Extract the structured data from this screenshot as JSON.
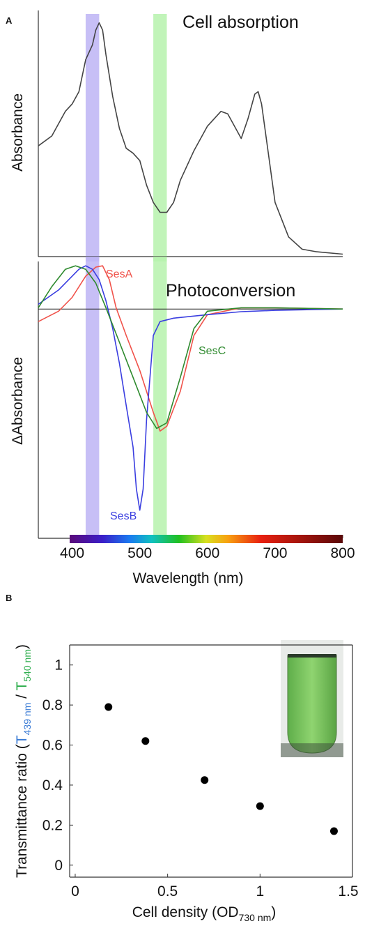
{
  "panel_labels": [
    "A",
    "B"
  ],
  "chart_data": [
    {
      "type": "line",
      "title": "Cell absorption",
      "ylabel": "Absorbance",
      "xlim": [
        350,
        800
      ],
      "ylim": [
        0,
        1
      ],
      "bands": [
        {
          "from": 420,
          "to": 440,
          "color": "#bdb4f5"
        },
        {
          "from": 520,
          "to": 540,
          "color": "#b6f2ad"
        }
      ],
      "color": "#444444",
      "x": [
        350,
        370,
        390,
        400,
        410,
        420,
        430,
        435,
        440,
        445,
        450,
        460,
        470,
        480,
        490,
        500,
        510,
        520,
        530,
        540,
        550,
        560,
        580,
        600,
        620,
        630,
        640,
        650,
        660,
        670,
        675,
        680,
        690,
        700,
        720,
        740,
        760,
        800
      ],
      "values": [
        0.45,
        0.49,
        0.59,
        0.62,
        0.67,
        0.8,
        0.86,
        0.92,
        0.95,
        0.92,
        0.82,
        0.65,
        0.52,
        0.44,
        0.42,
        0.39,
        0.29,
        0.22,
        0.18,
        0.18,
        0.22,
        0.31,
        0.43,
        0.53,
        0.59,
        0.58,
        0.53,
        0.48,
        0.56,
        0.66,
        0.67,
        0.62,
        0.42,
        0.22,
        0.08,
        0.03,
        0.02,
        0.01
      ]
    },
    {
      "type": "line",
      "title": "Photoconversion",
      "ylabel": "ΔAbsorbance",
      "xlabel": "Wavelength (nm)",
      "xlim": [
        350,
        800
      ],
      "xticks": [
        400,
        500,
        600,
        700,
        800
      ],
      "ylim": [
        -5.3,
        1.1
      ],
      "bands": [
        {
          "from": 420,
          "to": 440,
          "color": "#bdb4f5"
        },
        {
          "from": 520,
          "to": 540,
          "color": "#b6f2ad"
        }
      ],
      "series": [
        {
          "name": "SesA",
          "color": "#f0524a",
          "x": [
            350,
            380,
            400,
            420,
            435,
            445,
            455,
            465,
            480,
            500,
            520,
            530,
            540,
            560,
            580,
            600,
            650,
            700,
            800
          ],
          "values": [
            -0.29,
            -0.05,
            0.27,
            0.76,
            0.97,
            1.0,
            0.68,
            0.03,
            -0.61,
            -1.42,
            -2.39,
            -2.82,
            -2.71,
            -1.9,
            -0.61,
            -0.13,
            0.03,
            0.03,
            0
          ]
        },
        {
          "name": "SesB",
          "color": "#3a3ee0",
          "x": [
            350,
            380,
            400,
            410,
            420,
            430,
            440,
            450,
            460,
            470,
            480,
            490,
            495,
            500,
            505,
            510,
            520,
            530,
            550,
            600,
            650,
            700,
            800
          ],
          "values": [
            0.11,
            0.44,
            0.76,
            0.92,
            1.0,
            0.92,
            0.68,
            0.19,
            -0.45,
            -1.26,
            -2.23,
            -3.19,
            -4.16,
            -4.65,
            -4.16,
            -2.56,
            -0.61,
            -0.29,
            -0.21,
            -0.13,
            -0.06,
            -0.03,
            0
          ]
        },
        {
          "name": "SesC",
          "color": "#2e8a2e",
          "x": [
            350,
            370,
            390,
            405,
            420,
            435,
            450,
            470,
            490,
            510,
            525,
            540,
            560,
            580,
            600,
            650,
            700,
            800
          ],
          "values": [
            0.03,
            0.52,
            0.92,
            1.0,
            0.92,
            0.6,
            0.03,
            -0.77,
            -1.58,
            -2.39,
            -2.76,
            -2.63,
            -1.58,
            -0.45,
            -0.05,
            0.03,
            0.03,
            0
          ]
        }
      ]
    },
    {
      "type": "scatter",
      "color": "#000000",
      "ylabel": {
        "prefix": "Transmittance ratio (",
        "num": "T",
        "num_sub": "439 nm",
        "num_color": "#3a7bd5",
        "sep": " / ",
        "den": "T",
        "den_sub": "540 nm",
        "den_color": "#2fae4e",
        "suffix": ")"
      },
      "xlabel": {
        "prefix": "Cell density (OD",
        "sub": "730 nm",
        "suffix": ")"
      },
      "xlim": [
        -0.03,
        1.5
      ],
      "xticks": [
        0,
        0.5,
        1,
        1.5
      ],
      "ylim": [
        -0.06,
        1.1
      ],
      "yticks": [
        0,
        0.2,
        0.4,
        0.6,
        0.8,
        1
      ],
      "x": [
        0.18,
        0.38,
        0.7,
        1.0,
        1.4
      ],
      "values": [
        0.79,
        0.62,
        0.425,
        0.295,
        0.17
      ]
    }
  ]
}
